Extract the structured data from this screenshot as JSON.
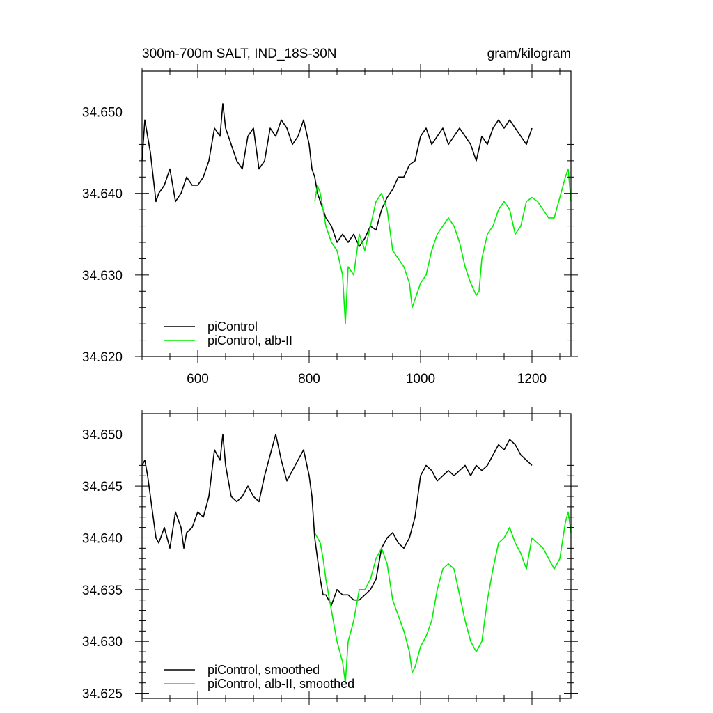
{
  "header": {
    "left_title": "300m-700m SALT, IND_18S-30N",
    "right_title": "gram/kilogram"
  },
  "colors": {
    "control": "#000000",
    "alb": "#00ee00"
  },
  "chart_data": [
    {
      "type": "line",
      "xlim": [
        500,
        1270
      ],
      "ylim": [
        34.62,
        34.655
      ],
      "x_ticks": [
        600,
        800,
        1000,
        1200
      ],
      "x_tick_labels": [
        "600",
        "800",
        "1000",
        "1200"
      ],
      "y_ticks": [
        34.62,
        34.63,
        34.64,
        34.65
      ],
      "y_tick_labels": [
        "34.620",
        "34.630",
        "34.640",
        "34.650"
      ],
      "legend_position": "bottom-left",
      "series": [
        {
          "name": "piControl",
          "color": "#000000",
          "x": [
            500,
            505,
            510,
            515,
            520,
            525,
            530,
            540,
            550,
            560,
            570,
            580,
            590,
            600,
            610,
            620,
            630,
            640,
            645,
            650,
            660,
            670,
            680,
            690,
            700,
            710,
            720,
            730,
            740,
            750,
            760,
            770,
            780,
            790,
            800,
            805,
            810,
            815,
            820,
            825,
            830,
            840,
            850,
            860,
            870,
            880,
            890,
            900,
            910,
            920,
            930,
            940,
            950,
            960,
            970,
            980,
            990,
            1000,
            1010,
            1020,
            1030,
            1040,
            1050,
            1060,
            1070,
            1080,
            1090,
            1100,
            1110,
            1120,
            1130,
            1140,
            1150,
            1160,
            1170,
            1180,
            1190,
            1200
          ],
          "y": [
            34.644,
            34.649,
            34.647,
            34.645,
            34.642,
            34.639,
            34.64,
            34.641,
            34.643,
            34.639,
            34.64,
            34.642,
            34.641,
            34.641,
            34.642,
            34.644,
            34.648,
            34.647,
            34.651,
            34.648,
            34.646,
            34.644,
            34.643,
            34.647,
            34.648,
            34.643,
            34.644,
            34.648,
            34.647,
            34.649,
            34.648,
            34.646,
            34.647,
            34.649,
            34.646,
            34.643,
            34.642,
            34.64,
            34.639,
            34.638,
            34.637,
            34.636,
            34.634,
            34.635,
            34.634,
            34.635,
            34.6335,
            34.6345,
            34.636,
            34.6355,
            34.638,
            34.6395,
            34.6405,
            34.642,
            34.642,
            34.6435,
            34.644,
            34.647,
            34.648,
            34.646,
            34.647,
            34.648,
            34.646,
            34.647,
            34.648,
            34.647,
            34.646,
            34.644,
            34.647,
            34.646,
            34.648,
            34.649,
            34.648,
            34.649,
            34.648,
            34.647,
            34.646,
            34.648
          ]
        },
        {
          "name": "piControl, alb-II",
          "color": "#00ee00",
          "x": [
            810,
            815,
            820,
            825,
            830,
            840,
            850,
            860,
            865,
            870,
            880,
            890,
            900,
            910,
            920,
            930,
            940,
            950,
            960,
            970,
            980,
            985,
            990,
            1000,
            1010,
            1020,
            1030,
            1040,
            1050,
            1060,
            1070,
            1080,
            1090,
            1100,
            1105,
            1110,
            1120,
            1130,
            1140,
            1150,
            1160,
            1170,
            1180,
            1190,
            1200,
            1210,
            1220,
            1230,
            1240,
            1250,
            1260,
            1265,
            1270
          ],
          "y": [
            34.639,
            34.641,
            34.64,
            34.638,
            34.636,
            34.634,
            34.633,
            34.63,
            34.624,
            34.631,
            34.63,
            34.635,
            34.633,
            34.636,
            34.639,
            34.64,
            34.638,
            34.633,
            34.632,
            34.631,
            34.629,
            34.626,
            34.627,
            34.629,
            34.63,
            34.633,
            34.635,
            34.636,
            34.637,
            34.636,
            34.634,
            34.631,
            34.629,
            34.6275,
            34.628,
            34.632,
            34.635,
            34.636,
            34.638,
            34.639,
            34.638,
            34.635,
            34.636,
            34.639,
            34.6395,
            34.639,
            34.638,
            34.637,
            34.637,
            34.6395,
            34.642,
            34.643,
            34.639
          ]
        }
      ]
    },
    {
      "type": "line",
      "xlim": [
        500,
        1270
      ],
      "ylim": [
        34.6245,
        34.652
      ],
      "x_ticks": [
        600,
        800,
        1000,
        1200
      ],
      "x_tick_labels": [
        "",
        "",
        "",
        ""
      ],
      "y_ticks": [
        34.625,
        34.63,
        34.635,
        34.64,
        34.645,
        34.65
      ],
      "y_tick_labels": [
        "34.625",
        "34.630",
        "34.635",
        "34.640",
        "34.645",
        "34.650"
      ],
      "legend_position": "bottom-left",
      "series": [
        {
          "name": "piControl, smoothed",
          "color": "#000000",
          "x": [
            500,
            505,
            510,
            515,
            520,
            525,
            530,
            540,
            550,
            560,
            570,
            575,
            580,
            590,
            600,
            610,
            620,
            630,
            640,
            645,
            650,
            660,
            670,
            680,
            690,
            700,
            710,
            720,
            730,
            740,
            750,
            760,
            770,
            780,
            790,
            800,
            805,
            810,
            815,
            820,
            825,
            830,
            840,
            850,
            860,
            870,
            880,
            890,
            900,
            910,
            920,
            930,
            940,
            950,
            960,
            970,
            980,
            990,
            1000,
            1010,
            1020,
            1030,
            1040,
            1050,
            1060,
            1070,
            1080,
            1090,
            1100,
            1110,
            1120,
            1130,
            1140,
            1150,
            1160,
            1170,
            1180,
            1190,
            1200
          ],
          "y": [
            34.647,
            34.6475,
            34.646,
            34.644,
            34.642,
            34.64,
            34.6395,
            34.641,
            34.639,
            34.6425,
            34.641,
            34.639,
            34.6405,
            34.641,
            34.6425,
            34.642,
            34.644,
            34.6485,
            34.6475,
            34.65,
            34.647,
            34.644,
            34.6435,
            34.644,
            34.645,
            34.644,
            34.6435,
            34.646,
            34.648,
            34.65,
            34.6475,
            34.6455,
            34.6465,
            34.6475,
            34.6485,
            34.646,
            34.644,
            34.64,
            34.638,
            34.636,
            34.6345,
            34.6345,
            34.6335,
            34.635,
            34.6345,
            34.6345,
            34.634,
            34.634,
            34.6345,
            34.635,
            34.636,
            34.639,
            34.64,
            34.6405,
            34.6395,
            34.639,
            34.64,
            34.642,
            34.646,
            34.647,
            34.6465,
            34.6455,
            34.646,
            34.6465,
            34.646,
            34.6465,
            34.647,
            34.646,
            34.647,
            34.6465,
            34.647,
            34.648,
            34.649,
            34.6485,
            34.6495,
            34.649,
            34.648,
            34.6475,
            34.647
          ]
        },
        {
          "name": "piControl, alb-II, smoothed",
          "color": "#00ee00",
          "x": [
            810,
            815,
            820,
            825,
            830,
            840,
            850,
            860,
            865,
            870,
            880,
            890,
            900,
            910,
            920,
            930,
            940,
            950,
            960,
            970,
            980,
            985,
            990,
            1000,
            1010,
            1020,
            1030,
            1040,
            1050,
            1060,
            1070,
            1080,
            1090,
            1100,
            1110,
            1120,
            1130,
            1140,
            1150,
            1160,
            1170,
            1180,
            1190,
            1200,
            1210,
            1220,
            1230,
            1240,
            1250,
            1260,
            1265,
            1270
          ],
          "y": [
            34.6405,
            34.64,
            34.6395,
            34.638,
            34.636,
            34.633,
            34.63,
            34.628,
            34.626,
            34.63,
            34.632,
            34.635,
            34.635,
            34.636,
            34.638,
            34.639,
            34.6375,
            34.634,
            34.6325,
            34.631,
            34.629,
            34.627,
            34.6275,
            34.6295,
            34.6305,
            34.632,
            34.635,
            34.637,
            34.6375,
            34.637,
            34.6345,
            34.632,
            34.63,
            34.629,
            34.63,
            34.634,
            34.637,
            34.6395,
            34.64,
            34.641,
            34.6395,
            34.6385,
            34.637,
            34.64,
            34.6395,
            34.639,
            34.638,
            34.637,
            34.638,
            34.6415,
            34.6425,
            34.6405
          ]
        }
      ]
    }
  ]
}
